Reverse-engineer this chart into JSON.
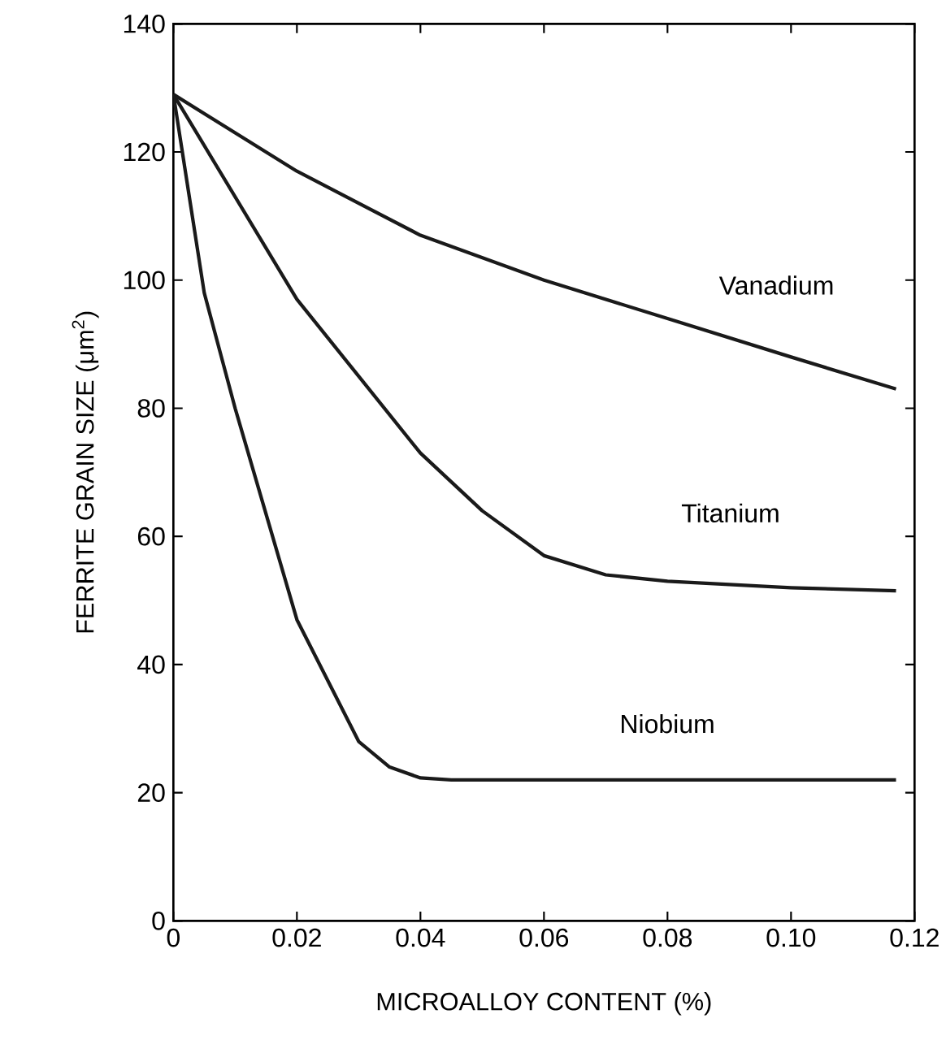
{
  "chart_data": {
    "type": "line",
    "xlabel": "MICROALLOY CONTENT (%)",
    "ylabel": "FERRITE GRAIN SIZE (μm$^{2}$)",
    "xlim": [
      0,
      0.12
    ],
    "ylim": [
      0,
      140
    ],
    "xticks": [
      0,
      0.02,
      0.04,
      0.06,
      0.08,
      {
        "value": 0.1,
        "label": "0.10"
      },
      0.12
    ],
    "yticks": [
      0,
      20,
      40,
      60,
      80,
      100,
      120,
      140
    ],
    "grid": false,
    "marker": "none",
    "line_style": "solid",
    "color": "#1a1a1a",
    "series": [
      {
        "name": "Vanadium",
        "x": [
          0,
          0.02,
          0.04,
          0.06,
          0.08,
          0.1,
          0.117
        ],
        "values": [
          129,
          117,
          107,
          100,
          94,
          88,
          83
        ]
      },
      {
        "name": "Titanium",
        "x": [
          0,
          0.02,
          0.04,
          0.05,
          0.06,
          0.07,
          0.08,
          0.1,
          0.117
        ],
        "values": [
          129,
          97,
          73,
          64,
          57,
          54,
          53,
          52,
          51.5
        ]
      },
      {
        "name": "Niobium",
        "x": [
          0,
          0.005,
          0.01,
          0.02,
          0.03,
          0.035,
          0.04,
          0.045,
          0.117
        ],
        "values": [
          129,
          98,
          80,
          47,
          28,
          24,
          22.3,
          22,
          22
        ]
      }
    ]
  }
}
